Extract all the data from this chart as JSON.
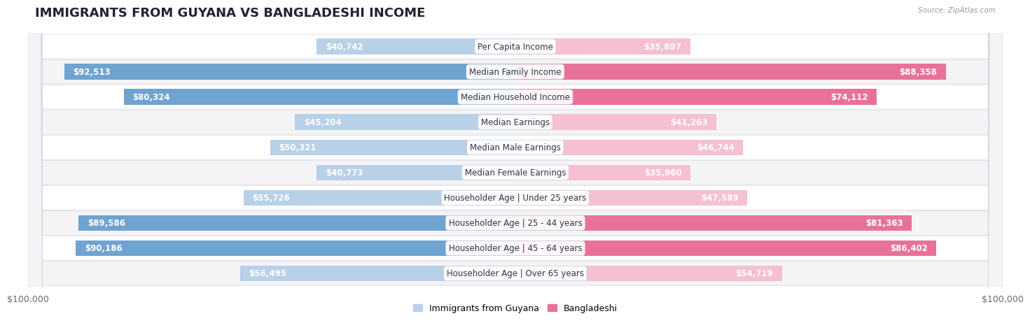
{
  "title": "IMMIGRANTS FROM GUYANA VS BANGLADESHI INCOME",
  "source": "Source: ZipAtlas.com",
  "categories": [
    "Per Capita Income",
    "Median Family Income",
    "Median Household Income",
    "Median Earnings",
    "Median Male Earnings",
    "Median Female Earnings",
    "Householder Age | Under 25 years",
    "Householder Age | 25 - 44 years",
    "Householder Age | 45 - 64 years",
    "Householder Age | Over 65 years"
  ],
  "guyana_values": [
    40742,
    92513,
    80324,
    45204,
    50321,
    40773,
    55726,
    89586,
    90186,
    56495
  ],
  "bangladeshi_values": [
    35897,
    88358,
    74112,
    41263,
    46744,
    35960,
    47589,
    81363,
    86402,
    54719
  ],
  "guyana_color_light": "#b8d0e8",
  "guyana_color_dark": "#6fa3d0",
  "bangladeshi_color_light": "#f5c0d0",
  "bangladeshi_color_dark": "#e8719a",
  "row_bg_odd": "#f4f4f6",
  "row_bg_even": "#ffffff",
  "row_border": "#d8d8e0",
  "page_bg": "#ffffff",
  "max_value": 100000,
  "xlabel_left": "$100,000",
  "xlabel_right": "$100,000",
  "legend_guyana": "Immigrants from Guyana",
  "legend_bangladeshi": "Bangladeshi",
  "title_fontsize": 13,
  "label_fontsize": 8.5,
  "cat_fontsize": 8.5
}
